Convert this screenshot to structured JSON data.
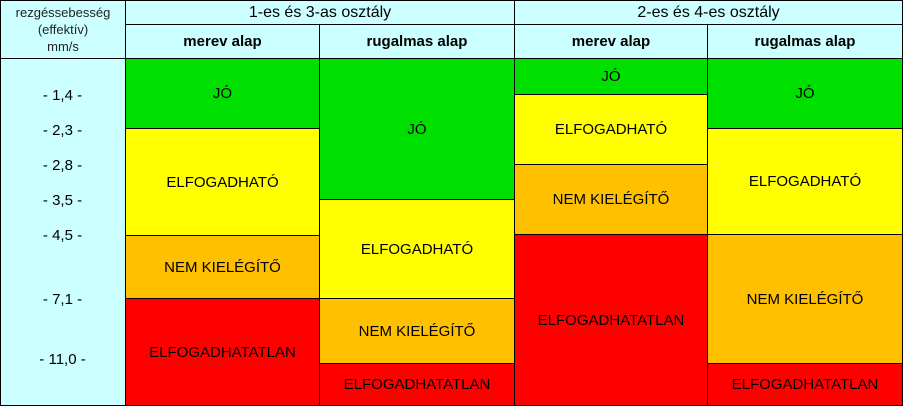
{
  "header": {
    "axis_title": [
      "rezgéssebesség",
      "(effektív)",
      "mm/s"
    ],
    "groups": [
      "1-es és 3-as osztály",
      "2-es és 4-es osztály"
    ],
    "subcolumns": [
      "merev alap",
      "rugalmas alap",
      "merev alap",
      "rugalmas alap"
    ]
  },
  "ticks": [
    "- 1,4 -",
    "- 2,3 -",
    "- 2,8 -",
    "- 3,5 -",
    "- 4,5 -",
    "- 7,1 -",
    "- 11,0 -"
  ],
  "zones": {
    "good": "JÓ",
    "acceptable": "ELFOGADHATÓ",
    "unsatisfactory": "NEM KIELÉGÍTŐ",
    "unacceptable": "ELFOGADHATATLAN"
  },
  "colors": {
    "good": "#00e000",
    "acceptable": "#ffff00",
    "unsatisfactory": "#ffc000",
    "unacceptable": "#ff0000",
    "header": "#ccffff"
  }
}
